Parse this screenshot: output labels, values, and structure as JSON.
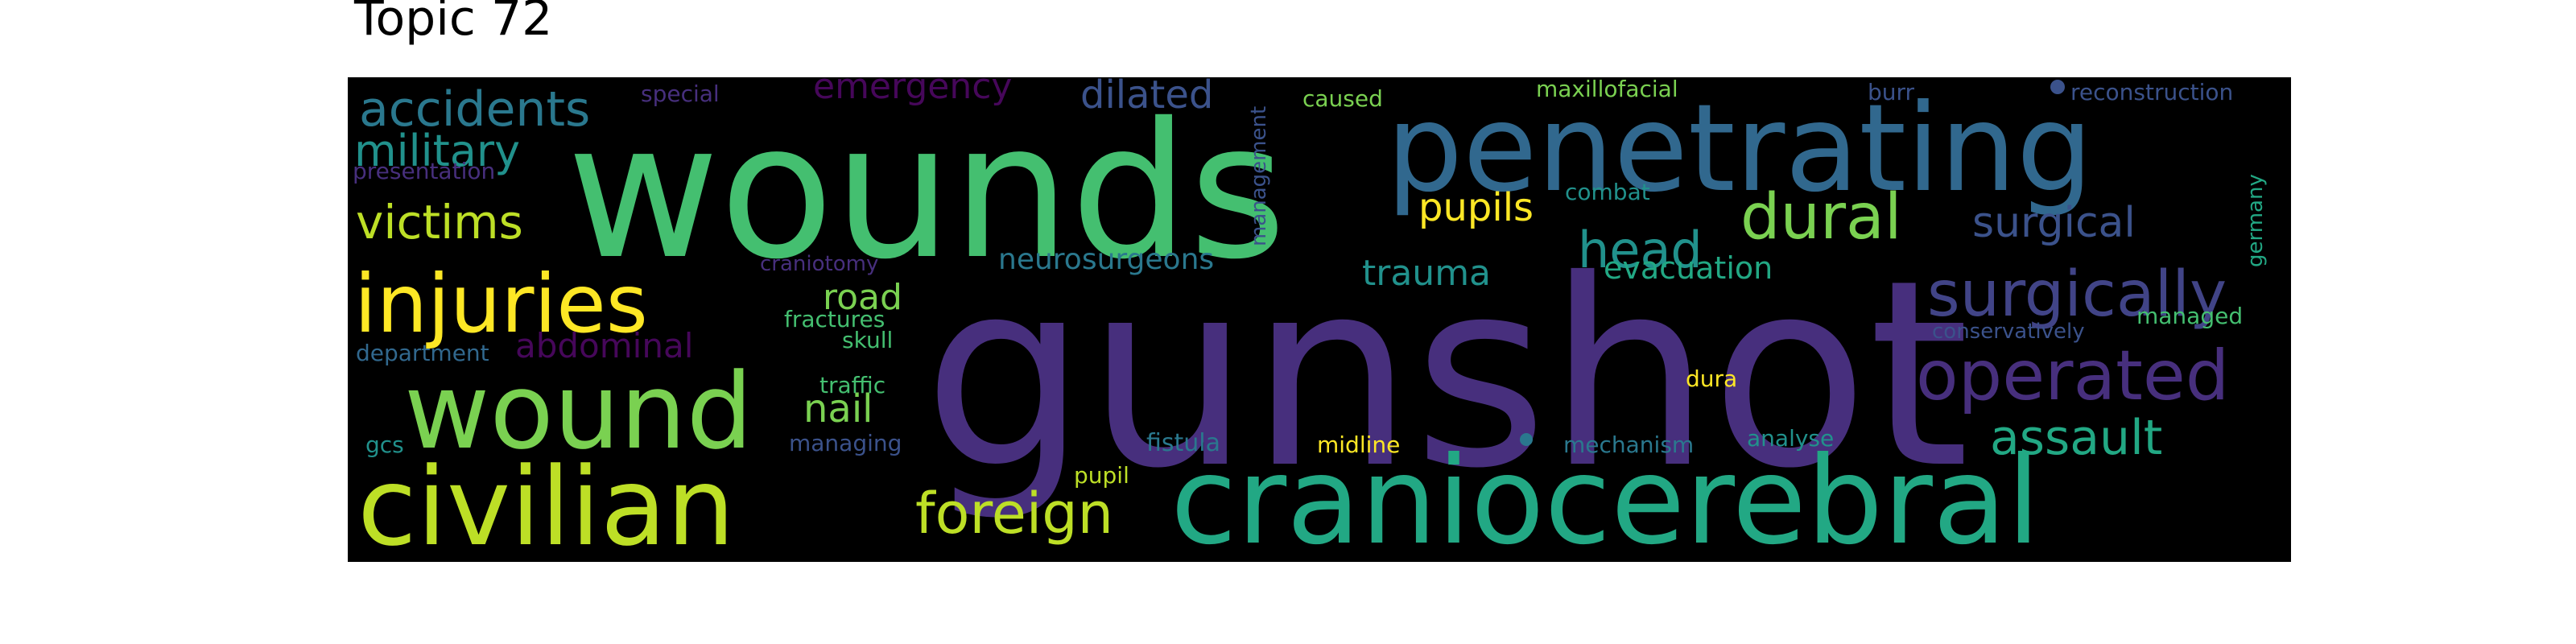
{
  "title": "Topic 72",
  "colors": {
    "background": "#000000",
    "dark_purple": "#46075a",
    "purple": "#472f7d",
    "indigo": "#414487",
    "slate_blue": "#3b528b",
    "blue": "#31688e",
    "teal_blue": "#2a788e",
    "teal": "#21918c",
    "green_teal": "#22a884",
    "green": "#44bf70",
    "light_green": "#7ad151",
    "lime": "#bddf26",
    "yellow": "#fde725"
  },
  "words": [
    "gunshot",
    "wounds",
    "penetrating",
    "craniocerebral",
    "civilian",
    "wound",
    "injuries",
    "operated",
    "surgically",
    "dural",
    "assault",
    "foreign",
    "victims",
    "accidents",
    "military",
    "head",
    "trauma",
    "pupils",
    "surgical",
    "emergency",
    "dilated",
    "neurosurgeons",
    "road",
    "nail",
    "abdominal",
    "evacuation",
    "presentation",
    "special",
    "caused",
    "maxillofacial",
    "management",
    "burr",
    "reconstruction",
    "germany",
    "managed",
    "conservatively",
    "combat",
    "craniotomy",
    "fractures",
    "skull",
    "department",
    "traffic",
    "gcs",
    "managing",
    "fistula",
    "midline",
    "mechanism",
    "analyse",
    "dura",
    "pupil"
  ]
}
